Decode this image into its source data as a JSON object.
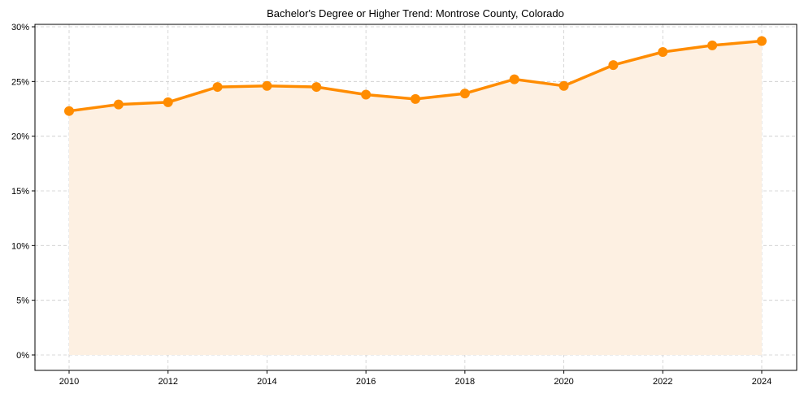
{
  "chart_data": {
    "type": "line",
    "title": "Bachelor's Degree or Higher Trend: Montrose County, Colorado",
    "xlabel": "",
    "ylabel": "",
    "x": [
      2010,
      2011,
      2012,
      2013,
      2014,
      2015,
      2016,
      2017,
      2018,
      2019,
      2020,
      2021,
      2022,
      2023,
      2024
    ],
    "series": [
      {
        "name": "Bachelor's Degree or Higher",
        "values": [
          22.3,
          22.9,
          23.1,
          24.5,
          24.6,
          24.5,
          23.8,
          23.4,
          23.9,
          25.2,
          24.6,
          26.5,
          27.7,
          28.3,
          28.7
        ],
        "color": "#ff8c00",
        "fill_color": "#fdf0e2",
        "marker": "circle",
        "area_fill": true
      }
    ],
    "xticks": [
      2010,
      2012,
      2014,
      2016,
      2018,
      2020,
      2022,
      2024
    ],
    "xtick_labels": [
      "2010",
      "2012",
      "2014",
      "2016",
      "2018",
      "2020",
      "2022",
      "2024"
    ],
    "yticks": [
      0,
      5,
      10,
      15,
      20,
      25,
      30
    ],
    "ytick_labels": [
      "0%",
      "5%",
      "10%",
      "15%",
      "20%",
      "25%",
      "30%"
    ],
    "xlim": [
      2009.3,
      2024.7
    ],
    "ylim": [
      -1.4,
      30.2
    ],
    "grid": true,
    "legend": null
  }
}
